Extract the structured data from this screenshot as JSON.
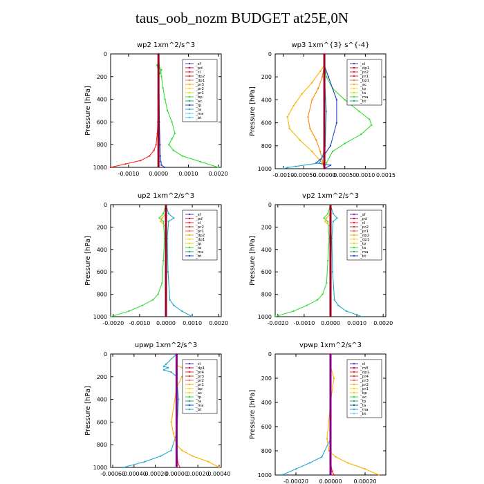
{
  "title": "taus_oob_nozm  BUDGET at25E,0N",
  "chart_data": [
    {
      "type": "line",
      "title": "wp2  1xm^2/s^3",
      "ylabel": "Pressure [hPa]",
      "ylim": [
        1000,
        0
      ],
      "yticks": [
        "0",
        "200",
        "400",
        "600",
        "800",
        "1000"
      ],
      "xlim": [
        -0.0016,
        0.0021
      ],
      "xticks": [
        {
          "v": -0.001,
          "label": "-0.0010"
        },
        {
          "v": 0,
          "label": "0.0000"
        },
        {
          "v": 0.001,
          "label": "0.0010"
        },
        {
          "v": 0.002,
          "label": "0.0020"
        }
      ],
      "legend": [
        "_sf",
        "_pd",
        "_cl",
        "_dp2",
        "_dp1",
        "_pr3",
        "_pr2",
        "_pr1",
        "_bp",
        "_ac",
        "_tp",
        "_ta",
        "_ma",
        "_bt"
      ],
      "series": [
        {
          "name": "_dp1",
          "color": "#ff2020",
          "x": [
            0,
            0,
            0,
            0,
            0,
            -1e-05,
            -2e-05,
            -4e-05,
            -8e-05,
            -0.00015,
            -0.0003,
            -0.0006,
            -0.0011,
            -0.0016
          ],
          "y": [
            0,
            100,
            200,
            300,
            400,
            500,
            600,
            700,
            800,
            850,
            900,
            940,
            970,
            1000
          ]
        },
        {
          "name": "_ac",
          "color": "#33dd33",
          "x": [
            0,
            2e-05,
            8e-05,
            0.0001,
            0.00015,
            0.00022,
            0.0003,
            0.00045,
            0.00055,
            0.00045,
            0.00035,
            0.0005,
            0.0008,
            0.0014,
            0.002
          ],
          "y": [
            0,
            100,
            150,
            200,
            300,
            400,
            500,
            600,
            700,
            750,
            800,
            850,
            900,
            950,
            1000
          ]
        },
        {
          "name": "_pr1",
          "color": "#33dd33",
          "x": [
            0,
            -5e-05,
            -2e-05,
            0.0001,
            5e-05,
            0
          ],
          "y": [
            80,
            100,
            120,
            140,
            170,
            200
          ]
        },
        {
          "name": "_tp",
          "color": "#2244cc",
          "x": [
            0,
            3e-05,
            5e-05,
            6e-05,
            8e-05,
            0.0001,
            0.0002
          ],
          "y": [
            0,
            600,
            800,
            900,
            950,
            980,
            1000
          ]
        },
        {
          "name": "_bt",
          "color": "#990022",
          "x": [
            0,
            0,
            0,
            0,
            0,
            0,
            0
          ],
          "y": [
            0,
            200,
            400,
            600,
            800,
            900,
            1000
          ]
        }
      ]
    },
    {
      "type": "line",
      "title": "wp3  1xm^{3} s^{-4}",
      "ylabel": "Pressure [hPa]",
      "ylim": [
        1000,
        0
      ],
      "yticks": [
        "0",
        "200",
        "400",
        "600",
        "800",
        "1000"
      ],
      "xlim": [
        -0.0012,
        0.0015
      ],
      "xticks": [
        {
          "v": -0.001,
          "label": "-0.0010"
        },
        {
          "v": -0.0005,
          "label": "-0.00050"
        },
        {
          "v": 0,
          "label": "0.00000"
        },
        {
          "v": 0.0005,
          "label": "0.00050"
        },
        {
          "v": 0.001,
          "label": "0.0010"
        },
        {
          "v": 0.0015,
          "label": "0.0015"
        }
      ],
      "legend": [
        "_cl",
        "_dp1",
        "_pr2",
        "_pr1",
        "_bp1",
        "_ac",
        "_tp",
        "_ta",
        "_ma",
        "_bt"
      ],
      "series": [
        {
          "name": "_pr1",
          "color": "#ffb000",
          "x": [
            0,
            -0.0001,
            -0.0003,
            -0.00055,
            -0.00075,
            -0.0009,
            -0.00085,
            -0.0006,
            -0.0003,
            -5e-05,
            0
          ],
          "y": [
            100,
            150,
            250,
            350,
            450,
            550,
            650,
            750,
            850,
            950,
            1000
          ]
        },
        {
          "name": "_pr2",
          "color": "#ff8800",
          "x": [
            0,
            -5e-05,
            -0.00015,
            -0.0003,
            -0.0004,
            -0.00035,
            -0.0002,
            -0.0001,
            0
          ],
          "y": [
            100,
            200,
            300,
            400,
            550,
            650,
            750,
            850,
            1000
          ]
        },
        {
          "name": "_ac",
          "color": "#33dd33",
          "x": [
            0,
            5e-05,
            0.0002,
            0.0005,
            0.00085,
            0.0011,
            0.00115,
            0.0009,
            0.0005,
            0.0002,
            5e-05
          ],
          "y": [
            100,
            200,
            300,
            400,
            500,
            570,
            620,
            700,
            780,
            850,
            950
          ]
        },
        {
          "name": "_tp",
          "color": "#2244cc",
          "x": [
            0,
            0.0001,
            0.0003,
            0.0003,
            0.00015,
            0,
            -0.0001,
            -0.0002,
            0.00015,
            0
          ],
          "y": [
            100,
            200,
            400,
            600,
            800,
            880,
            920,
            950,
            970,
            1000
          ]
        },
        {
          "name": "_ta",
          "color": "#22aacc",
          "x": [
            0,
            0,
            5e-05,
            2e-05,
            -5e-05,
            -0.00012,
            -0.0007,
            -0.0009,
            -0.001
          ],
          "y": [
            0,
            200,
            500,
            800,
            900,
            950,
            980,
            990,
            1000
          ]
        },
        {
          "name": "_cl",
          "color": "#ff2020",
          "x": [
            0,
            0,
            0,
            0,
            0,
            0
          ],
          "y": [
            0,
            200,
            400,
            600,
            800,
            1000
          ]
        },
        {
          "name": "_bt",
          "color": "#990022",
          "x": [
            0,
            0,
            0,
            0,
            0,
            0
          ],
          "y": [
            0,
            200,
            400,
            600,
            800,
            1000
          ]
        }
      ]
    },
    {
      "type": "line",
      "title": "up2  1xm^2/s^3",
      "ylabel": "Pressure [hPa]",
      "ylim": [
        1000,
        0
      ],
      "yticks": [
        "0",
        "200",
        "400",
        "600",
        "800",
        "1000"
      ],
      "xlim": [
        -0.0021,
        0.0021
      ],
      "xticks": [
        {
          "v": -0.002,
          "label": "-0.0020"
        },
        {
          "v": -0.001,
          "label": "-0.0010"
        },
        {
          "v": 0,
          "label": "0.0000"
        },
        {
          "v": 0.001,
          "label": "0.0010"
        },
        {
          "v": 0.002,
          "label": "0.0020"
        }
      ],
      "legend": [
        "_sf",
        "_pd",
        "_cl",
        "_pr2",
        "_pr1",
        "_dp2",
        "_dp1",
        "_tp",
        "_ta",
        "_ma",
        "_bt"
      ],
      "series": [
        {
          "name": "_dp1",
          "color": "#33dd33",
          "x": [
            0,
            -0.0001,
            -0.00025,
            -0.0001,
            -5e-05,
            -0.0001,
            -0.00015,
            -0.0003,
            -0.0005,
            -0.0009,
            -0.0014,
            -0.0021
          ],
          "y": [
            0,
            80,
            120,
            150,
            300,
            500,
            700,
            800,
            850,
            900,
            950,
            1000
          ]
        },
        {
          "name": "_pr1",
          "color": "#ffb000",
          "x": [
            0,
            -0.00015,
            -0.0002,
            0
          ],
          "y": [
            80,
            120,
            150,
            200
          ]
        },
        {
          "name": "_tp",
          "color": "#22aacc",
          "x": [
            0,
            0.0001,
            0.0003,
            0.0001,
            5e-05,
            8e-05,
            0.00015,
            0.0003,
            0.0006,
            0.001
          ],
          "y": [
            0,
            80,
            120,
            150,
            300,
            600,
            850,
            900,
            950,
            1000
          ]
        },
        {
          "name": "_bt",
          "color": "#990022",
          "x": [
            0,
            0,
            0,
            0,
            0,
            0
          ],
          "y": [
            0,
            200,
            400,
            600,
            800,
            1000
          ]
        }
      ]
    },
    {
      "type": "line",
      "title": "vp2  1xm^2/s^3",
      "ylabel": "Pressure [hPa]",
      "ylim": [
        1000,
        0
      ],
      "yticks": [
        "0",
        "200",
        "400",
        "600",
        "800",
        "1000"
      ],
      "xlim": [
        -0.0021,
        0.0021
      ],
      "xticks": [
        {
          "v": -0.002,
          "label": "-0.0020"
        },
        {
          "v": -0.001,
          "label": "-0.0010"
        },
        {
          "v": 0,
          "label": "0.0000"
        },
        {
          "v": 0.001,
          "label": "0.0010"
        },
        {
          "v": 0.002,
          "label": "0.0020"
        }
      ],
      "legend": [
        "_sf",
        "_pd",
        "_cl",
        "_pr2",
        "_pr1",
        "_dp2",
        "_dp1",
        "_tp",
        "_ta",
        "_ma",
        "_bt"
      ],
      "series": [
        {
          "name": "_dp1",
          "color": "#33dd33",
          "x": [
            0,
            -0.0001,
            -0.00025,
            -0.0001,
            -5e-05,
            -0.0001,
            -0.00015,
            -0.0003,
            -0.0005,
            -0.0009,
            -0.0014,
            -0.0021
          ],
          "y": [
            0,
            80,
            120,
            150,
            300,
            500,
            700,
            800,
            850,
            900,
            950,
            1000
          ]
        },
        {
          "name": "_pr1",
          "color": "#ffb000",
          "x": [
            0,
            -0.00015,
            -0.0002,
            0
          ],
          "y": [
            80,
            120,
            150,
            200
          ]
        },
        {
          "name": "_tp",
          "color": "#22aacc",
          "x": [
            0,
            0.0001,
            0.00025,
            0.0001,
            5e-05,
            8e-05,
            0.00015,
            0.0003,
            0.0006,
            0.0012
          ],
          "y": [
            0,
            80,
            120,
            150,
            300,
            600,
            850,
            900,
            950,
            1000
          ]
        },
        {
          "name": "_bt",
          "color": "#990022",
          "x": [
            0,
            0,
            0,
            0,
            0,
            0
          ],
          "y": [
            0,
            200,
            400,
            600,
            800,
            1000
          ]
        }
      ]
    },
    {
      "type": "line",
      "title": "upwp  1xm^2/s^3",
      "ylabel": "Pressure [hPa]",
      "ylim": [
        1000,
        0
      ],
      "yticks": [
        "0",
        "200",
        "400",
        "600",
        "800",
        "1000"
      ],
      "xlim": [
        -0.00062,
        0.00042
      ],
      "xticks": [
        {
          "v": -0.0006,
          "label": "-0.00060"
        },
        {
          "v": -0.0004,
          "label": "-0.00040"
        },
        {
          "v": -0.0002,
          "label": "-0.00020"
        },
        {
          "v": 0,
          "label": "0.00000"
        },
        {
          "v": 0.0002,
          "label": "0.00020"
        },
        {
          "v": 0.0004,
          "label": "0.00040"
        }
      ],
      "legend": [
        "_cl",
        "_dp1",
        "_pr4",
        "_pr3",
        "_pr2",
        "_pr1",
        "_bp",
        "_ac",
        "_tp",
        "_ta",
        "_ma",
        "_bt"
      ],
      "series": [
        {
          "name": "_ta",
          "color": "#22aacc",
          "x": [
            0,
            -0.0001,
            -0.00012,
            -8e-05,
            -0.00012,
            -5e-05,
            0,
            2e-05,
            0,
            -5e-05,
            -0.00015,
            -0.0003,
            -0.0005
          ],
          "y": [
            0,
            90,
            110,
            120,
            140,
            160,
            200,
            400,
            700,
            850,
            900,
            950,
            1000
          ]
        },
        {
          "name": "_pr1",
          "color": "#ffb000",
          "x": [
            0,
            5e-05,
            0.0001,
            5e-05,
            0,
            -5e-05,
            -3e-05,
            0,
            5e-05,
            0.00015,
            0.0003,
            0.0004
          ],
          "y": [
            100,
            120,
            150,
            200,
            300,
            600,
            700,
            800,
            850,
            900,
            950,
            1000
          ]
        },
        {
          "name": "_dp1",
          "color": "#ff2020",
          "x": [
            0,
            0,
            0,
            0,
            0,
            1e-05,
            3e-05
          ],
          "y": [
            0,
            200,
            400,
            600,
            800,
            950,
            1000
          ]
        },
        {
          "name": "_bt",
          "color": "#880088",
          "x": [
            0,
            0,
            0,
            0,
            0,
            0
          ],
          "y": [
            0,
            200,
            400,
            600,
            800,
            1000
          ]
        }
      ]
    },
    {
      "type": "line",
      "title": "vpwp  1xm^2/s^3",
      "ylabel": "Pressure [hPa]",
      "ylim": [
        1000,
        0
      ],
      "yticks": [
        "0",
        "200",
        "400",
        "600",
        "800",
        "1000"
      ],
      "xlim": [
        -0.00032,
        0.00032
      ],
      "xticks": [
        {
          "v": -0.0002,
          "label": "-0.00020"
        },
        {
          "v": 0,
          "label": "0.00000"
        },
        {
          "v": 0.0002,
          "label": "0.00020"
        }
      ],
      "legend": [
        "_cl",
        "_mfl",
        "_dp1",
        "_pr4",
        "_pr3",
        "_pr2",
        "_pr1",
        "_bp",
        "_ac",
        "_tp",
        "_ta",
        "_ma",
        "_bt"
      ],
      "series": [
        {
          "name": "_pr1",
          "color": "#ffb000",
          "x": [
            0,
            2e-05,
            0,
            -2e-05,
            -1e-05,
            3e-05,
            0.0001,
            0.0002,
            0.00028
          ],
          "y": [
            100,
            200,
            400,
            700,
            800,
            850,
            900,
            950,
            1000
          ]
        },
        {
          "name": "_ta",
          "color": "#22aacc",
          "x": [
            0,
            0,
            0,
            -5e-05,
            -0.00012,
            -0.0002,
            -0.00028
          ],
          "y": [
            0,
            300,
            700,
            850,
            900,
            950,
            1000
          ]
        },
        {
          "name": "_dp1",
          "color": "#ff2020",
          "x": [
            0,
            0,
            0,
            0,
            1e-05,
            2e-05
          ],
          "y": [
            0,
            300,
            600,
            900,
            970,
            1000
          ]
        },
        {
          "name": "_bt",
          "color": "#880088",
          "x": [
            0,
            0,
            0,
            0,
            0,
            0
          ],
          "y": [
            0,
            200,
            400,
            600,
            800,
            1000
          ]
        }
      ]
    }
  ]
}
